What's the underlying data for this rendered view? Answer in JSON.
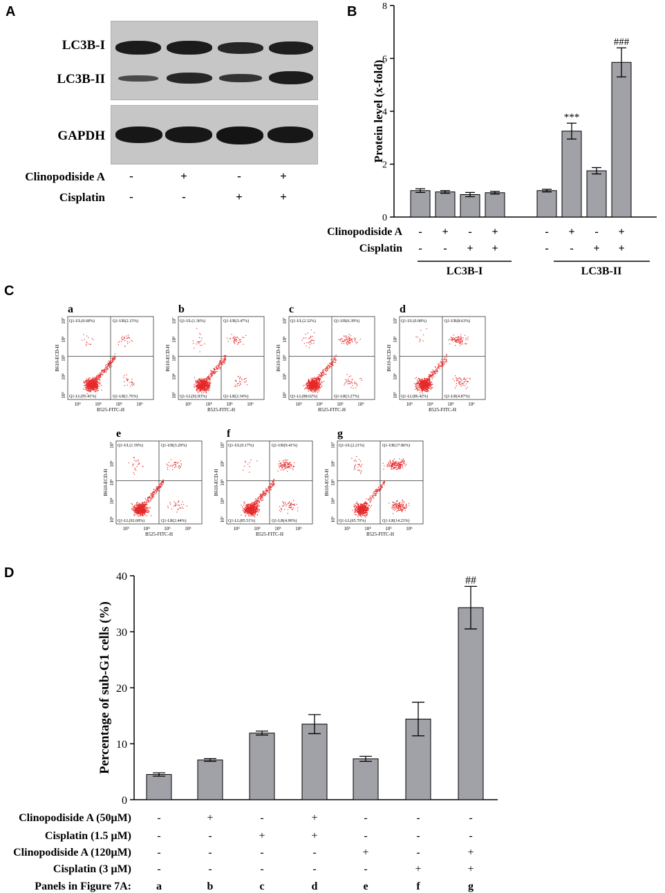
{
  "panels": {
    "A": "A",
    "B": "B",
    "C": "C",
    "D": "D"
  },
  "panel_a": {
    "bands": [
      "LC3B-I",
      "LC3B-II",
      "GAPDH"
    ],
    "treatments": [
      {
        "name": "Clinopodiside A",
        "signs": [
          "-",
          "+",
          "-",
          "+"
        ]
      },
      {
        "name": "Cisplatin",
        "signs": [
          "-",
          "-",
          "+",
          "+"
        ]
      }
    ]
  },
  "panel_c": {
    "plots": [
      {
        "letter": "a",
        "quadrants": [
          "Q1-UL(0.68%)",
          "Q1-UR(2.15%)",
          "Q1-LL(95.41%)",
          "Q1-LR(1.76%)"
        ]
      },
      {
        "letter": "b",
        "quadrants": [
          "Q1-UL(1.36%)",
          "Q1-UR(3.47%)",
          "Q1-LL(92.83%)",
          "Q1-LR(2.34%)"
        ]
      },
      {
        "letter": "c",
        "quadrants": [
          "Q1-UL(2.32%)",
          "Q1-UR(6.39%)",
          "Q1-LL(88.02%)",
          "Q1-LR(3.27%)"
        ]
      },
      {
        "letter": "d",
        "quadrants": [
          "Q1-UL(0.08%)",
          "Q1-UR(8.63%)",
          "Q1-LL(86.42%)",
          "Q1-LR(4.87%)"
        ]
      },
      {
        "letter": "e",
        "quadrants": [
          "Q1-UL(1.59%)",
          "Q1-UR(3.29%)",
          "Q1-LL(92.68%)",
          "Q1-LR(2.44%)"
        ]
      },
      {
        "letter": "f",
        "quadrants": [
          "Q1-UL(0.17%)",
          "Q1-UR(9.41%)",
          "Q1-LL(85.51%)",
          "Q1-LR(4.90%)"
        ]
      },
      {
        "letter": "g",
        "quadrants": [
          "Q1-UL(2.21%)",
          "Q1-UR(17.86%)",
          "Q1-LL(65.70%)",
          "Q1-LR(14.23%)"
        ]
      }
    ],
    "xlabel": "B525-FITC-H",
    "ylabel": "B610-ECD-H",
    "xticks": [
      "10³",
      "10⁴",
      "10⁵",
      "10⁶"
    ],
    "yticks": [
      "10³",
      "10⁴",
      "10⁵",
      "10⁶",
      "10⁷"
    ]
  },
  "chart_data": [
    {
      "type": "bar",
      "panel": "B",
      "ylabel": "Protein level (x-fold)",
      "ylim": [
        0,
        8
      ],
      "yticks": [
        0,
        2,
        4,
        6,
        8
      ],
      "groups": [
        "LC3B-I",
        "LC3B-II"
      ],
      "values": [
        1.0,
        0.95,
        0.85,
        0.92,
        1.0,
        3.25,
        1.75,
        5.85
      ],
      "errors": [
        0.07,
        0.05,
        0.08,
        0.05,
        0.05,
        0.3,
        0.12,
        0.55
      ],
      "annotations": [
        {
          "bar": 5,
          "text": "***"
        },
        {
          "bar": 7,
          "text": "###"
        }
      ],
      "treatments": [
        {
          "name": "Clinopodiside A",
          "signs": [
            "-",
            "+",
            "-",
            "+",
            "-",
            "+",
            "-",
            "+"
          ]
        },
        {
          "name": "Cisplatin",
          "signs": [
            "-",
            "-",
            "+",
            "+",
            "-",
            "-",
            "+",
            "+"
          ]
        }
      ]
    },
    {
      "type": "bar",
      "panel": "D",
      "ylabel": "Percentage of sub-G1 cells (%)",
      "ylim": [
        0,
        40
      ],
      "yticks": [
        0,
        10,
        20,
        30,
        40
      ],
      "values": [
        4.5,
        7.1,
        11.9,
        13.5,
        7.3,
        14.4,
        34.3
      ],
      "errors": [
        0.3,
        0.25,
        0.35,
        1.7,
        0.45,
        3.0,
        3.8
      ],
      "annotations": [
        {
          "bar": 6,
          "text": "##"
        }
      ],
      "treatments": [
        {
          "name": "Clinopodiside A (50μM)",
          "signs": [
            "-",
            "+",
            "-",
            "+",
            "-",
            "-",
            "-"
          ]
        },
        {
          "name": "Cisplatin (1.5 μM)",
          "signs": [
            "-",
            "-",
            "+",
            "+",
            "-",
            "-",
            "-"
          ]
        },
        {
          "name": "Clinopodiside A  (120μM)",
          "signs": [
            "-",
            "-",
            "-",
            "-",
            "+",
            "-",
            "+"
          ]
        },
        {
          "name": "Cisplatin (3 μM)",
          "signs": [
            "-",
            "-",
            "-",
            "-",
            "-",
            "+",
            "+"
          ]
        },
        {
          "name": "Panels in Figure 7A:",
          "signs": [
            "a",
            "b",
            "c",
            "d",
            "e",
            "f",
            "g"
          ]
        }
      ]
    }
  ]
}
